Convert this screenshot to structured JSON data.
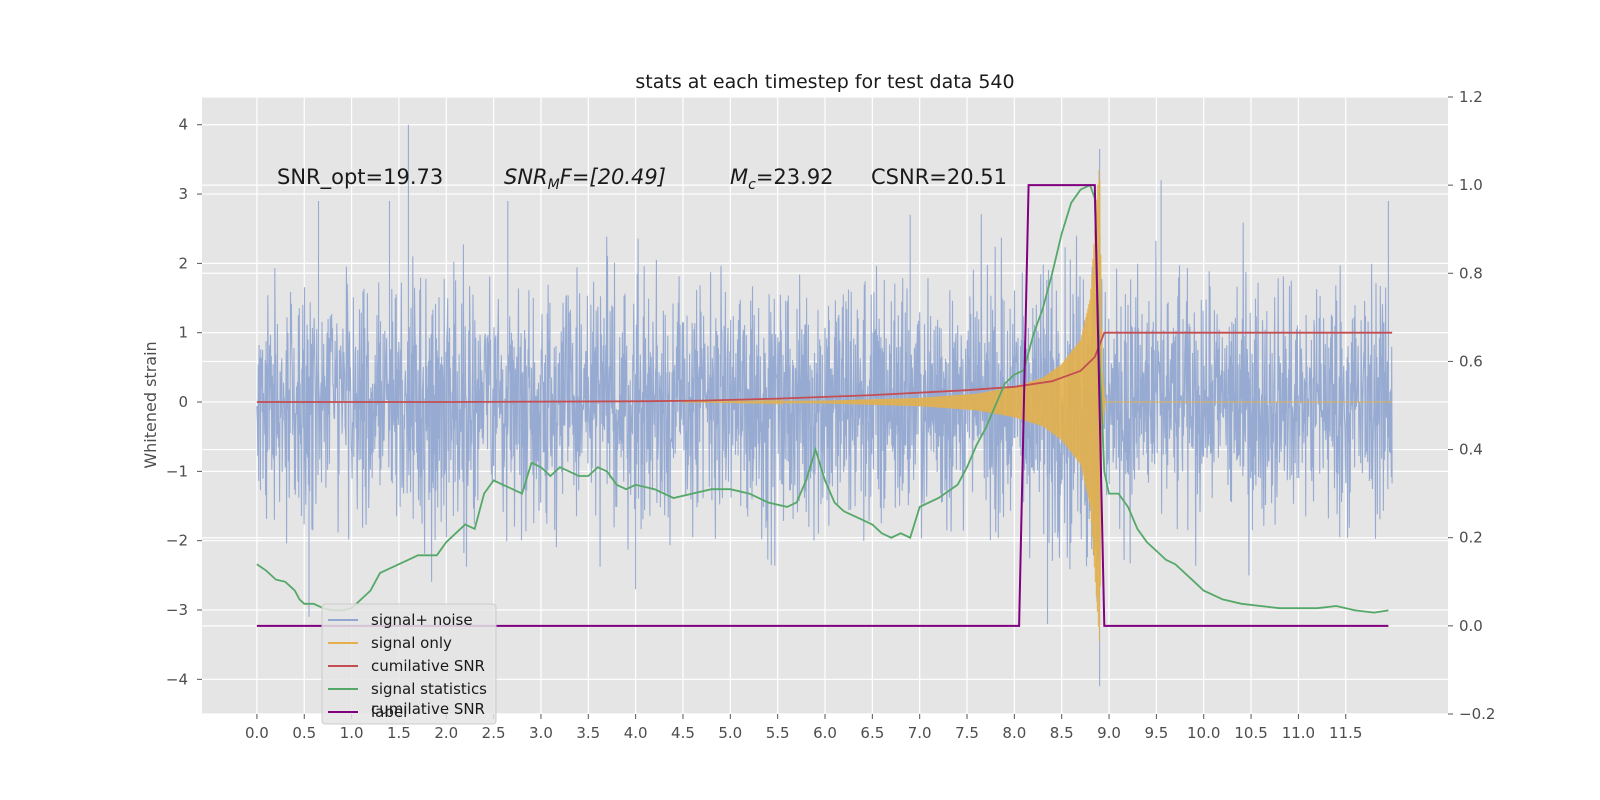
{
  "chart_data": {
    "type": "line",
    "title": "stats at each timestep for test data 540",
    "xlabel": "",
    "ylabel": "Whitened strain",
    "y2label": "",
    "xlim": [
      -0.58,
      12.58
    ],
    "ylim": [
      -4.5,
      4.4
    ],
    "y2lim": [
      -0.2,
      1.2
    ],
    "xticks": [
      0.0,
      0.5,
      1.0,
      1.5,
      2.0,
      2.5,
      3.0,
      3.5,
      4.0,
      4.5,
      5.0,
      5.5,
      6.0,
      6.5,
      7.0,
      7.5,
      8.0,
      8.5,
      9.0,
      9.5,
      10.0,
      10.5,
      11.0,
      11.5
    ],
    "xtick_labels": [
      "0.0",
      "0.5",
      "1.0",
      "1.5",
      "2.0",
      "2.5",
      "3.0",
      "3.5",
      "4.0",
      "4.5",
      "5.0",
      "5.5",
      "6.0",
      "6.5",
      "7.0",
      "7.5",
      "8.0",
      "8.5",
      "9.0",
      "9.5",
      "10.0",
      "10.5",
      "11.0",
      "11.5"
    ],
    "yticks": [
      -4,
      -3,
      -2,
      -1,
      0,
      1,
      2,
      3,
      4
    ],
    "ytick_labels": [
      "−4",
      "−3",
      "−2",
      "−1",
      "0",
      "1",
      "2",
      "3",
      "4"
    ],
    "y2ticks": [
      -0.2,
      0.0,
      0.2,
      0.4,
      0.6,
      0.8,
      1.0,
      1.2
    ],
    "y2tick_labels": [
      "−0.2",
      "0.0",
      "0.2",
      "0.4",
      "0.6",
      "0.8",
      "1.0",
      "1.2"
    ],
    "grid": true,
    "legend_position": "lower-left",
    "annotations": {
      "snr_opt": "SNR_opt=19.73",
      "snr_mf_var": "SNR",
      "snr_mf_sub": "M",
      "snr_mf_rest": "F=[20.49]",
      "mc_var": "M",
      "mc_sub": "c",
      "mc_rest": "=23.92",
      "csnr": "CSNR=20.51",
      "legend_ghost": "cumilative SNR"
    },
    "series": [
      {
        "name": "signal+ noise",
        "axis": "left",
        "color": "#92a8d1",
        "style": "dense noise",
        "x_range": [
          0.0,
          11.99
        ],
        "typical_envelope": [
          -1.9,
          1.9
        ],
        "spikes": [
          [
            0.55,
            -3.1
          ],
          [
            0.65,
            2.9
          ],
          [
            1.4,
            2.9
          ],
          [
            1.6,
            4.0
          ],
          [
            2.65,
            2.9
          ],
          [
            4.0,
            -2.7
          ],
          [
            6.9,
            2.7
          ],
          [
            8.35,
            -3.2
          ],
          [
            8.9,
            3.65
          ],
          [
            8.9,
            -4.1
          ],
          [
            9.55,
            3.2
          ],
          [
            11.95,
            2.9
          ]
        ]
      },
      {
        "name": "signal only",
        "axis": "left",
        "color": "#e3b04b",
        "style": "chirp",
        "x_range": [
          4.5,
          11.99
        ],
        "amplitude_points": [
          [
            4.5,
            0.0
          ],
          [
            6.0,
            0.02
          ],
          [
            7.0,
            0.06
          ],
          [
            7.6,
            0.12
          ],
          [
            8.0,
            0.22
          ],
          [
            8.3,
            0.35
          ],
          [
            8.5,
            0.55
          ],
          [
            8.7,
            0.9
          ],
          [
            8.8,
            1.5
          ],
          [
            8.85,
            2.5
          ],
          [
            8.9,
            3.5
          ],
          [
            8.93,
            0.5
          ],
          [
            8.96,
            0.0
          ]
        ]
      },
      {
        "name": "cumilative SNR",
        "axis": "left",
        "color": "#c44e52",
        "x": [
          0.0,
          2.0,
          4.0,
          4.7,
          5.5,
          6.5,
          7.5,
          8.0,
          8.4,
          8.7,
          8.85,
          8.95,
          9.5,
          11.99
        ],
        "y": [
          0.0,
          0.0,
          0.01,
          0.02,
          0.05,
          0.1,
          0.17,
          0.22,
          0.3,
          0.45,
          0.65,
          1.0,
          1.0,
          1.0
        ]
      },
      {
        "name": "signal statistics",
        "axis": "right",
        "color": "#55a868",
        "x": [
          0.0,
          0.1,
          0.2,
          0.3,
          0.4,
          0.45,
          0.5,
          0.55,
          0.6,
          0.7,
          0.8,
          0.9,
          1.0,
          1.1,
          1.2,
          1.3,
          1.4,
          1.5,
          1.6,
          1.7,
          1.8,
          1.9,
          2.0,
          2.1,
          2.2,
          2.3,
          2.4,
          2.5,
          2.6,
          2.7,
          2.8,
          2.9,
          3.0,
          3.1,
          3.2,
          3.3,
          3.4,
          3.5,
          3.6,
          3.7,
          3.8,
          3.9,
          4.0,
          4.2,
          4.4,
          4.6,
          4.8,
          5.0,
          5.2,
          5.4,
          5.6,
          5.7,
          5.8,
          5.9,
          6.0,
          6.1,
          6.2,
          6.3,
          6.4,
          6.5,
          6.6,
          6.7,
          6.8,
          6.9,
          7.0,
          7.2,
          7.4,
          7.5,
          7.6,
          7.7,
          7.8,
          7.9,
          8.0,
          8.1,
          8.2,
          8.3,
          8.4,
          8.5,
          8.6,
          8.7,
          8.8,
          8.85,
          8.9,
          8.95,
          9.0,
          9.1,
          9.2,
          9.3,
          9.4,
          9.5,
          9.6,
          9.7,
          9.8,
          9.9,
          10.0,
          10.2,
          10.4,
          10.6,
          10.8,
          11.0,
          11.2,
          11.4,
          11.6,
          11.8,
          11.95
        ],
        "y": [
          0.14,
          0.125,
          0.105,
          0.1,
          0.08,
          0.06,
          0.05,
          0.05,
          0.05,
          0.04,
          0.035,
          0.035,
          0.04,
          0.06,
          0.08,
          0.12,
          0.13,
          0.14,
          0.15,
          0.16,
          0.16,
          0.16,
          0.19,
          0.21,
          0.23,
          0.22,
          0.3,
          0.33,
          0.32,
          0.31,
          0.3,
          0.37,
          0.36,
          0.34,
          0.36,
          0.35,
          0.34,
          0.34,
          0.36,
          0.35,
          0.32,
          0.31,
          0.32,
          0.31,
          0.29,
          0.3,
          0.31,
          0.31,
          0.3,
          0.28,
          0.27,
          0.28,
          0.33,
          0.4,
          0.33,
          0.28,
          0.26,
          0.25,
          0.24,
          0.23,
          0.21,
          0.2,
          0.21,
          0.2,
          0.27,
          0.29,
          0.32,
          0.36,
          0.41,
          0.45,
          0.5,
          0.55,
          0.57,
          0.58,
          0.66,
          0.72,
          0.8,
          0.89,
          0.96,
          0.99,
          1.0,
          0.97,
          0.6,
          0.35,
          0.3,
          0.3,
          0.27,
          0.22,
          0.19,
          0.17,
          0.15,
          0.14,
          0.12,
          0.1,
          0.08,
          0.06,
          0.05,
          0.045,
          0.04,
          0.04,
          0.04,
          0.045,
          0.035,
          0.03,
          0.035
        ]
      },
      {
        "name": "label",
        "axis": "right",
        "color": "#800080",
        "x": [
          0.0,
          8.05,
          8.15,
          8.85,
          8.95,
          11.95
        ],
        "y": [
          0.0,
          0.0,
          1.0,
          1.0,
          0.0,
          0.0
        ]
      }
    ]
  }
}
